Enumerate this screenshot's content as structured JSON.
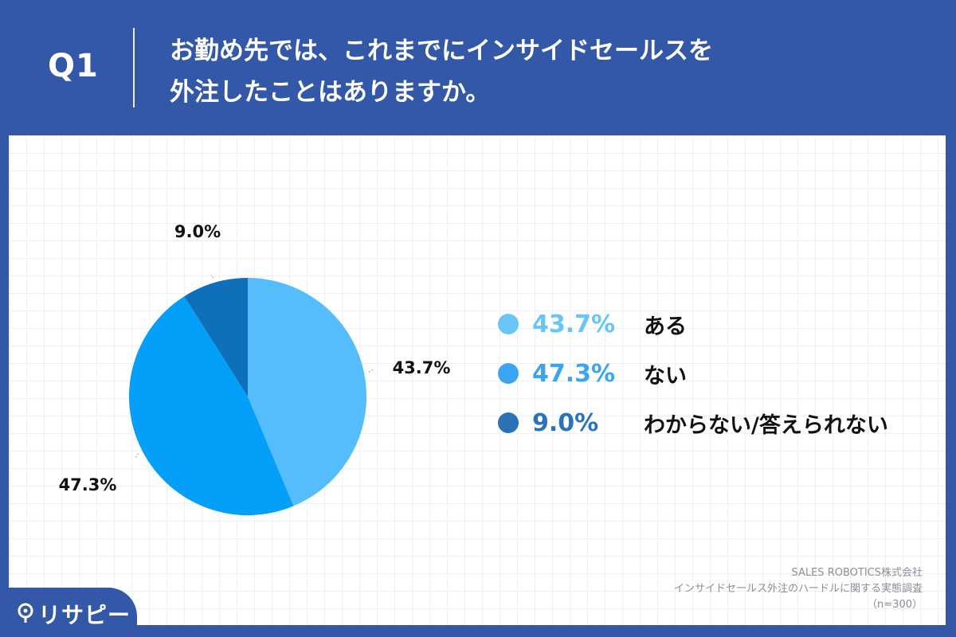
{
  "header": {
    "question_number": "Q1",
    "title_line1": "お勤め先では、これまでにインサイドセールスを",
    "title_line2": "外注したことはありますか。"
  },
  "chart_data": {
    "type": "pie",
    "categories": [
      "ある",
      "ない",
      "わからない/答えられない"
    ],
    "values": [
      43.7,
      47.3,
      9.0
    ],
    "value_labels": [
      "43.7%",
      "47.3%",
      "9.0%"
    ],
    "colors": [
      "#55bdfb",
      "#039ff9",
      "#0d70b8"
    ],
    "legend_colors": [
      "#69c5f8",
      "#3ba5f3",
      "#2a73b8"
    ],
    "legend_placement": "right"
  },
  "source": {
    "line1": "SALES ROBOTICS株式会社",
    "line2": "インサイドセールス外注のハードルに関する実態調査",
    "line3": "（n=300）"
  },
  "logo": {
    "text": "リサピー"
  }
}
